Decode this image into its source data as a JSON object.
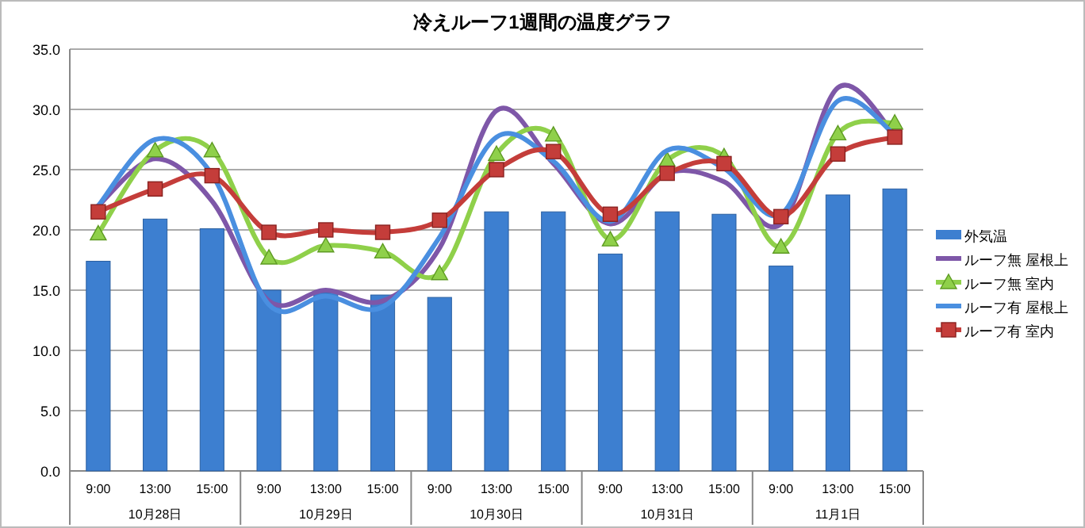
{
  "chart_data": {
    "type": "bar",
    "title": "冷えルーフ1週間の温度グラフ",
    "categories": [
      "9:00",
      "13:00",
      "15:00",
      "9:00",
      "13:00",
      "15:00",
      "9:00",
      "13:00",
      "15:00",
      "9:00",
      "13:00",
      "15:00",
      "9:00",
      "13:00",
      "15:00"
    ],
    "annotations": [
      "10月28日",
      "10月29日",
      "10月30日",
      "10月31日",
      "11月1日"
    ],
    "series": [
      {
        "name": "外気温",
        "color": "#3d7fd0",
        "values": [
          17.4,
          20.9,
          20.1,
          15.0,
          14.8,
          14.6,
          14.4,
          21.5,
          21.5,
          18.0,
          21.5,
          21.3,
          17.0,
          22.9,
          23.4
        ]
      },
      {
        "name": "ルーフ無  屋根上",
        "type": "line",
        "marker": "none",
        "color": "#7e57a8",
        "values": [
          22.0,
          25.9,
          22.4,
          14.1,
          15.0,
          14.1,
          18.5,
          29.9,
          25.5,
          20.5,
          24.7,
          24.0,
          20.5,
          31.8,
          27.9
        ]
      },
      {
        "name": "ルーフ無  室内",
        "type": "line",
        "marker": "triangle",
        "color": "#8fd04a",
        "values": [
          19.7,
          26.6,
          26.6,
          17.7,
          18.7,
          18.2,
          16.4,
          26.3,
          27.9,
          19.2,
          25.8,
          26.1,
          18.6,
          28.0,
          28.9
        ]
      },
      {
        "name": "ルーフ有  屋根上",
        "type": "line",
        "marker": "none",
        "color": "#4a8fe0",
        "values": [
          22.0,
          27.5,
          24.6,
          13.8,
          14.5,
          13.6,
          19.4,
          27.7,
          25.7,
          20.7,
          26.6,
          25.1,
          21.3,
          30.7,
          27.9
        ]
      },
      {
        "name": "ルーフ有  室内",
        "type": "line",
        "marker": "square",
        "color": "#c43d3a",
        "values": [
          21.5,
          23.4,
          24.5,
          19.8,
          20.0,
          19.8,
          20.8,
          25.0,
          26.5,
          21.3,
          24.7,
          25.5,
          21.1,
          26.3,
          27.7
        ]
      }
    ],
    "ylim": [
      0,
      35
    ],
    "yticks": [
      {
        "value": 0,
        "label": "0.0"
      },
      {
        "value": 5,
        "label": "5.0"
      },
      {
        "value": 10,
        "label": "10.0"
      },
      {
        "value": 15,
        "label": "15.0"
      },
      {
        "value": 20,
        "label": "20.0"
      },
      {
        "value": 25,
        "label": "25.0"
      },
      {
        "value": 30,
        "label": "30.0"
      },
      {
        "value": 35,
        "label": "35.0"
      }
    ],
    "grid": "y",
    "legend": "right"
  }
}
